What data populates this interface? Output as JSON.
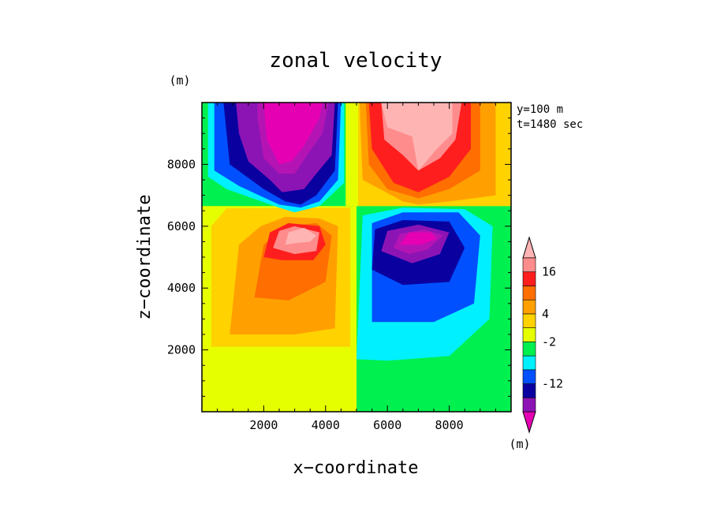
{
  "chart_data": {
    "type": "heatmap",
    "title": "zonal velocity",
    "xlabel": "x−coordinate",
    "ylabel": "z−coordinate",
    "x_unit": "(m)",
    "y_unit": "(m)",
    "xlim": [
      0,
      10000
    ],
    "ylim": [
      0,
      10000
    ],
    "x_ticks": [
      2000,
      4000,
      6000,
      8000
    ],
    "x_tick_labels": [
      "2000",
      "4000",
      "6000",
      "8000"
    ],
    "y_ticks": [
      2000,
      4000,
      6000,
      8000
    ],
    "y_tick_labels": [
      "2000",
      "4000",
      "6000",
      "8000"
    ],
    "annotations": [
      "y=100 m",
      "t=1480 sec"
    ],
    "colorbar": {
      "unit": "(m)",
      "colors": [
        "#e600b4",
        "#8c14b4",
        "#0a00a0",
        "#0050ff",
        "#00f0ff",
        "#00f050",
        "#e6ff00",
        "#ffd200",
        "#ffa000",
        "#ff6e00",
        "#ff1e1e",
        "#ff8c8c",
        "#ffb4b4"
      ],
      "labels": [
        {
          "text": "-12",
          "index": 2
        },
        {
          "text": "-2",
          "index": 5
        },
        {
          "text": "4",
          "index": 7
        },
        {
          "text": "16",
          "index": 10
        }
      ]
    },
    "background_color": "#e6ff00",
    "regions": [
      {
        "color": "#ffd200",
        "pts": [
          [
            300,
            2100
          ],
          [
            300,
            6000
          ],
          [
            800,
            6580
          ],
          [
            4800,
            6600
          ],
          [
            4800,
            2100
          ]
        ]
      },
      {
        "color": "#ffa000",
        "pts": [
          [
            900,
            2500
          ],
          [
            1200,
            5400
          ],
          [
            1900,
            6000
          ],
          [
            2700,
            6300
          ],
          [
            3800,
            6250
          ],
          [
            4400,
            6000
          ],
          [
            4300,
            2700
          ],
          [
            3000,
            2500
          ]
        ]
      },
      {
        "color": "#ff6e00",
        "pts": [
          [
            1700,
            3700
          ],
          [
            2000,
            5400
          ],
          [
            2700,
            6000
          ],
          [
            3700,
            6100
          ],
          [
            4200,
            5700
          ],
          [
            4000,
            4200
          ],
          [
            2800,
            3600
          ]
        ]
      },
      {
        "color": "#ff1e1e",
        "pts": [
          [
            2000,
            5000
          ],
          [
            2200,
            5800
          ],
          [
            2800,
            6100
          ],
          [
            3800,
            6000
          ],
          [
            4000,
            5400
          ],
          [
            3600,
            4900
          ],
          [
            2600,
            4900
          ]
        ]
      },
      {
        "color": "#ff8c8c",
        "pts": [
          [
            2300,
            5300
          ],
          [
            2500,
            5850
          ],
          [
            3000,
            6000
          ],
          [
            3800,
            5800
          ],
          [
            3700,
            5200
          ],
          [
            3000,
            5100
          ]
        ]
      },
      {
        "color": "#ffb4b4",
        "pts": [
          [
            2700,
            5400
          ],
          [
            2800,
            5800
          ],
          [
            3300,
            5950
          ],
          [
            3700,
            5700
          ],
          [
            3500,
            5500
          ],
          [
            3000,
            5450
          ]
        ]
      },
      {
        "color": "#00f050",
        "pts": [
          [
            5000,
            0
          ],
          [
            10000,
            0
          ],
          [
            10000,
            6650
          ],
          [
            5000,
            6650
          ]
        ]
      },
      {
        "color": "#00f0ff",
        "pts": [
          [
            5000,
            1700
          ],
          [
            5200,
            6350
          ],
          [
            6500,
            6600
          ],
          [
            8500,
            6550
          ],
          [
            9400,
            6000
          ],
          [
            9300,
            3000
          ],
          [
            8000,
            1800
          ],
          [
            6000,
            1650
          ]
        ]
      },
      {
        "color": "#0050ff",
        "pts": [
          [
            5500,
            2900
          ],
          [
            5500,
            6100
          ],
          [
            6500,
            6450
          ],
          [
            8300,
            6450
          ],
          [
            9000,
            5700
          ],
          [
            8800,
            3500
          ],
          [
            7500,
            2900
          ]
        ]
      },
      {
        "color": "#0a00a0",
        "pts": [
          [
            5500,
            4600
          ],
          [
            5600,
            5900
          ],
          [
            6500,
            6200
          ],
          [
            8000,
            6150
          ],
          [
            8500,
            5300
          ],
          [
            8000,
            4200
          ],
          [
            6500,
            4100
          ]
        ]
      },
      {
        "color": "#8c14b4",
        "pts": [
          [
            5800,
            5200
          ],
          [
            6000,
            5850
          ],
          [
            7000,
            6050
          ],
          [
            8000,
            5800
          ],
          [
            7700,
            5100
          ],
          [
            6800,
            4800
          ]
        ]
      },
      {
        "color": "#b414b4",
        "pts": [
          [
            6200,
            5300
          ],
          [
            6400,
            5750
          ],
          [
            7200,
            5900
          ],
          [
            7800,
            5700
          ],
          [
            7300,
            5250
          ],
          [
            6700,
            5100
          ]
        ]
      },
      {
        "color": "#e600b4",
        "pts": [
          [
            6400,
            5400
          ],
          [
            6700,
            5800
          ],
          [
            7400,
            5800
          ],
          [
            7600,
            5600
          ],
          [
            7100,
            5400
          ]
        ]
      },
      {
        "color": "#ffd200",
        "pts": [
          [
            0,
            6650
          ],
          [
            10000,
            6650
          ],
          [
            10000,
            10000
          ],
          [
            0,
            10000
          ]
        ]
      },
      {
        "color": "#00f050",
        "pts": [
          [
            0,
            6650
          ],
          [
            4900,
            6650
          ],
          [
            4900,
            10000
          ],
          [
            0,
            10000
          ]
        ]
      },
      {
        "color": "#00f0ff",
        "pts": [
          [
            200,
            7600
          ],
          [
            800,
            7200
          ],
          [
            2500,
            6600
          ],
          [
            3000,
            6450
          ],
          [
            3800,
            6650
          ],
          [
            4600,
            7400
          ],
          [
            4600,
            10000
          ],
          [
            200,
            10000
          ]
        ]
      },
      {
        "color": "#0050ff",
        "pts": [
          [
            400,
            7800
          ],
          [
            1200,
            7300
          ],
          [
            2500,
            6700
          ],
          [
            3200,
            6600
          ],
          [
            3800,
            6800
          ],
          [
            4400,
            7500
          ],
          [
            4500,
            10000
          ],
          [
            400,
            10000
          ]
        ]
      },
      {
        "color": "#0a00a0",
        "pts": [
          [
            900,
            8000
          ],
          [
            2000,
            7200
          ],
          [
            2700,
            6800
          ],
          [
            3200,
            6700
          ],
          [
            3700,
            7000
          ],
          [
            4300,
            7800
          ],
          [
            4400,
            10000
          ],
          [
            700,
            10000
          ]
        ]
      },
      {
        "color": "#8c14b4",
        "pts": [
          [
            1200,
            9000
          ],
          [
            1500,
            8100
          ],
          [
            2200,
            7500
          ],
          [
            2600,
            7100
          ],
          [
            3300,
            7200
          ],
          [
            3700,
            7700
          ],
          [
            4200,
            8300
          ],
          [
            4300,
            10000
          ],
          [
            1100,
            10000
          ]
        ]
      },
      {
        "color": "#b414b4",
        "pts": [
          [
            1800,
            9500
          ],
          [
            2000,
            8200
          ],
          [
            2500,
            7700
          ],
          [
            3000,
            7700
          ],
          [
            3400,
            8300
          ],
          [
            3900,
            9000
          ],
          [
            4100,
            10000
          ],
          [
            1800,
            10000
          ]
        ]
      },
      {
        "color": "#e600b4",
        "pts": [
          [
            2000,
            10000
          ],
          [
            2100,
            8800
          ],
          [
            2500,
            8000
          ],
          [
            2900,
            8100
          ],
          [
            3300,
            8600
          ],
          [
            3800,
            9500
          ],
          [
            3900,
            10000
          ]
        ]
      },
      {
        "color": "#ffa000",
        "pts": [
          [
            5100,
            10000
          ],
          [
            5200,
            7500
          ],
          [
            6500,
            6800
          ],
          [
            7000,
            6700
          ],
          [
            8000,
            6800
          ],
          [
            9500,
            7000
          ],
          [
            9500,
            10000
          ]
        ]
      },
      {
        "color": "#ff6e00",
        "pts": [
          [
            5300,
            10000
          ],
          [
            5400,
            8000
          ],
          [
            6000,
            7200
          ],
          [
            7000,
            6900
          ],
          [
            8000,
            7200
          ],
          [
            9000,
            7800
          ],
          [
            9000,
            10000
          ]
        ]
      },
      {
        "color": "#ff1e1e",
        "pts": [
          [
            5400,
            10000
          ],
          [
            5500,
            8500
          ],
          [
            6200,
            7400
          ],
          [
            7000,
            7100
          ],
          [
            8000,
            7600
          ],
          [
            8700,
            8500
          ],
          [
            8700,
            10000
          ]
        ]
      },
      {
        "color": "#ff8c8c",
        "pts": [
          [
            5800,
            10000
          ],
          [
            5900,
            8800
          ],
          [
            6500,
            8300
          ],
          [
            7000,
            7800
          ],
          [
            7700,
            8200
          ],
          [
            8200,
            8800
          ],
          [
            8400,
            10000
          ]
        ]
      },
      {
        "color": "#ffb4b4",
        "pts": [
          [
            5800,
            10000
          ],
          [
            6000,
            9200
          ],
          [
            6800,
            8900
          ],
          [
            7000,
            7800
          ],
          [
            7600,
            8500
          ],
          [
            8100,
            9000
          ],
          [
            8100,
            10000
          ]
        ]
      },
      {
        "color": "#e6ff00",
        "pts": [
          [
            4650,
            6650
          ],
          [
            5050,
            6650
          ],
          [
            5050,
            10000
          ],
          [
            4650,
            10000
          ]
        ]
      }
    ]
  }
}
